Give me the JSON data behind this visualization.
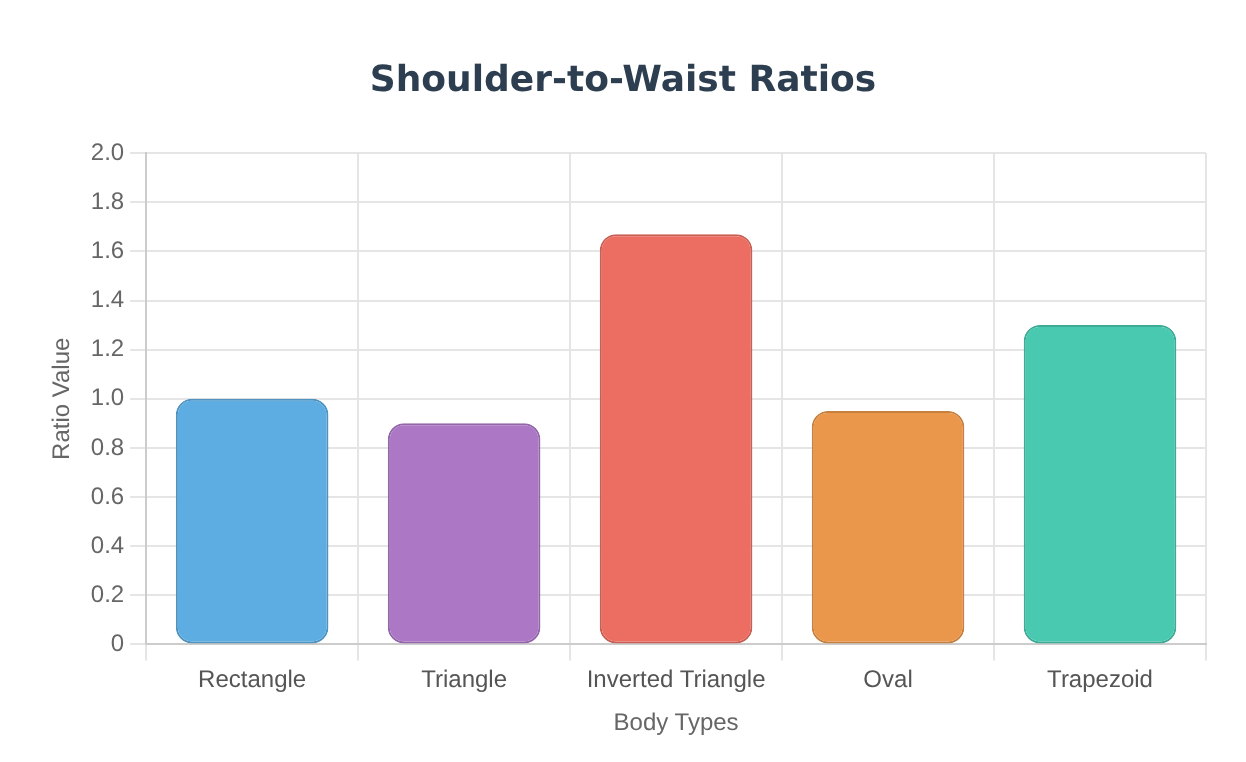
{
  "chart_data": {
    "type": "bar",
    "title": "Shoulder-to-Waist Ratios",
    "xlabel": "Body Types",
    "ylabel": "Ratio Value",
    "categories": [
      "Rectangle",
      "Triangle",
      "Inverted Triangle",
      "Oval",
      "Trapezoid"
    ],
    "values": [
      1.0,
      0.9,
      1.67,
      0.95,
      1.3
    ],
    "colors": [
      "#5dade2",
      "#ac78c6",
      "#ec6e62",
      "#ea964b",
      "#48c9b0"
    ],
    "ylim": [
      0,
      2.0
    ],
    "yticks": [
      0,
      {
        "value": 0.2,
        "label": "0.2"
      },
      {
        "value": 0.4,
        "label": "0.4"
      },
      {
        "value": 0.6,
        "label": "0.6"
      },
      {
        "value": 0.8,
        "label": "0.8"
      },
      {
        "value": 1.0,
        "label": "1.0"
      },
      {
        "value": 1.2,
        "label": "1.2"
      },
      {
        "value": 1.4,
        "label": "1.4"
      },
      {
        "value": 1.6,
        "label": "1.6"
      },
      {
        "value": 1.8,
        "label": "1.8"
      },
      {
        "value": 2.0,
        "label": "2.0"
      }
    ],
    "grid": true,
    "legend": false
  }
}
